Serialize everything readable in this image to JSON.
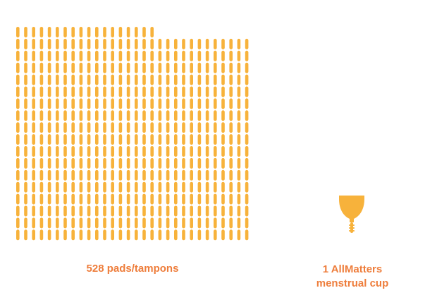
{
  "chart_data": {
    "type": "pictograph",
    "series": [
      {
        "label_line1": "528 pads/tampons",
        "value": 528,
        "icon": "pad-tampon-icon"
      },
      {
        "label_line1": "1 AllMatters",
        "label_line2": "menstrual cup",
        "value": 1,
        "icon": "menstrual-cup-icon"
      }
    ],
    "units_per_row": 30
  },
  "colors": {
    "icon": "#F7B23B",
    "label": "#EE7D3B"
  }
}
